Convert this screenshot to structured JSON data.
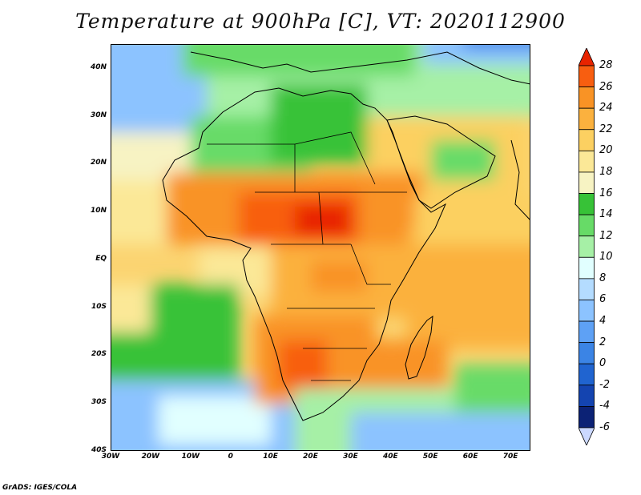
{
  "title": "Temperature at 900hPa [C], VT: 2020112900",
  "map": {
    "lat_labels": [
      "40N",
      "30N",
      "20N",
      "10N",
      "EQ",
      "10S",
      "20S",
      "30S",
      "40S"
    ],
    "lat_values": [
      40,
      30,
      20,
      10,
      0,
      -10,
      -20,
      -30,
      -40
    ],
    "lon_labels": [
      "30W",
      "20W",
      "10W",
      "0",
      "10E",
      "20E",
      "30E",
      "40E",
      "50E",
      "60E",
      "70E"
    ],
    "lon_values": [
      -30,
      -20,
      -10,
      0,
      10,
      20,
      30,
      40,
      50,
      60,
      70
    ],
    "lat_range": [
      -40,
      45
    ],
    "lon_range": [
      -30,
      75
    ],
    "variable": "Temperature at 900hPa",
    "units": "C"
  },
  "colorbar": {
    "labels": [
      "28",
      "26",
      "24",
      "22",
      "20",
      "18",
      "16",
      "14",
      "12",
      "10",
      "8",
      "6",
      "4",
      "2",
      "0",
      "-2",
      "-4",
      "-6"
    ],
    "levels": [
      28,
      26,
      24,
      22,
      20,
      18,
      16,
      14,
      12,
      10,
      8,
      6,
      4,
      2,
      0,
      -2,
      -4,
      -6
    ],
    "colors": [
      "#e82400",
      "#f85e10",
      "#f99325",
      "#fbb13e",
      "#fcd061",
      "#fbe897",
      "#f7f3c3",
      "#37c237",
      "#67db67",
      "#a6f0a6",
      "#e1ffff",
      "#b4dcff",
      "#8cc3ff",
      "#5ea1f5",
      "#3b84e5",
      "#2064d0",
      "#1444b0",
      "#0c2275",
      "#cbd8ff"
    ]
  },
  "credit": "GrADS: IGES/COLA"
}
